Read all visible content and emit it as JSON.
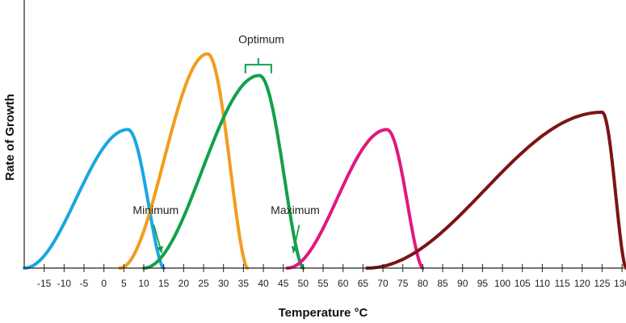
{
  "chart_data": {
    "type": "line",
    "xlabel": "Temperature °C",
    "ylabel": "Rate of Growth",
    "xlim": [
      -20,
      131
    ],
    "ylim": [
      0,
      1.0
    ],
    "x_ticks": [
      -15,
      -10,
      -5,
      0,
      5,
      10,
      15,
      20,
      25,
      30,
      35,
      40,
      45,
      50,
      55,
      60,
      65,
      70,
      75,
      80,
      85,
      90,
      95,
      100,
      105,
      110,
      115,
      120,
      125,
      130
    ],
    "grid": false,
    "series": [
      {
        "color": "#1aa7e0",
        "min": -20,
        "opt": 6,
        "max": 15,
        "peak": 0.64
      },
      {
        "color": "#f39c1f",
        "min": 4,
        "opt": 26,
        "max": 36,
        "peak": 0.99
      },
      {
        "color": "#12a14a",
        "min": 10,
        "opt": 39,
        "max": 50,
        "peak": 0.89
      },
      {
        "color": "#e0187f",
        "min": 46,
        "opt": 71,
        "max": 80,
        "peak": 0.64
      },
      {
        "color": "#7a1416",
        "min": 66,
        "opt": 125,
        "max": 131,
        "peak": 0.72
      }
    ],
    "annotations": [
      {
        "text": "Optimum",
        "x": 39.5,
        "y": 1.04
      },
      {
        "text": "Minimum",
        "x": 13,
        "y": 0.25
      },
      {
        "text": "Maximum",
        "x": 48,
        "y": 0.25
      }
    ]
  }
}
